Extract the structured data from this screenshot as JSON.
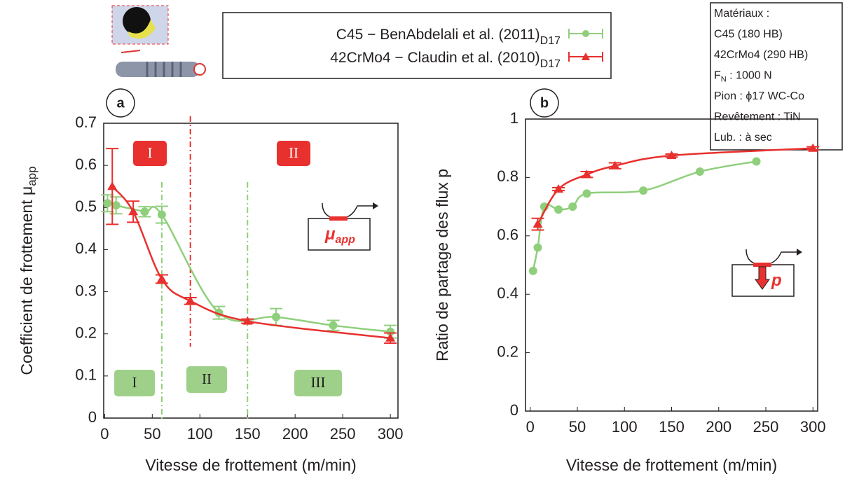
{
  "legend": {
    "entries": [
      {
        "name": "C45 − BenAbdelali et al. (2011)",
        "sub": "D17"
      },
      {
        "name": "42CrMo4 − Claudin et al. (2010)",
        "sub": "D17"
      }
    ]
  },
  "info_box": {
    "lines": [
      {
        "text": "Matériaux :"
      },
      {
        "text": "C45 (180 HB)"
      },
      {
        "text": "42CrMo4 (290 HB)"
      },
      {
        "text": "F",
        "sub": "N",
        "rest": " : 1000 N"
      },
      {
        "text": "Pion : ϕ17 WC-Co"
      },
      {
        "text": "Revêtement : TiN"
      },
      {
        "text": "Lub. : à sec"
      }
    ]
  },
  "chart_data": [
    {
      "type": "scatter",
      "panel": "a",
      "xlabel": "Vitesse de frottement (m/min)",
      "ylabel": "Coefficient de frottement μ",
      "ylabel_sub": "app",
      "xlim": [
        -1,
        308
      ],
      "ylim": [
        0,
        0.7
      ],
      "xticks": [
        0,
        50,
        100,
        150,
        200,
        250,
        300
      ],
      "yticks": [
        0,
        0.1,
        0.2,
        0.3,
        0.4,
        0.5,
        0.6,
        0.7
      ],
      "series": [
        {
          "name": "C45 − BenAbdelali et al. (2011)",
          "color": "#8fcf7c",
          "marker": "circle",
          "x": [
            3,
            12,
            42,
            60,
            120,
            180,
            240,
            300
          ],
          "values": [
            0.51,
            0.505,
            0.49,
            0.483,
            0.25,
            0.24,
            0.22,
            0.205
          ],
          "errors": [
            0.02,
            0.02,
            0.012,
            0.02,
            0.015,
            0.02,
            0.012,
            0.015
          ]
        },
        {
          "name": "42CrMo4 − Claudin et al. (2010)",
          "color": "#e8302e",
          "marker": "triangle",
          "x": [
            8,
            30,
            60,
            90,
            150,
            300
          ],
          "values": [
            0.55,
            0.49,
            0.33,
            0.278,
            0.23,
            0.19
          ],
          "errors": [
            0.09,
            0.025,
            0.01,
            0.008,
            0.005,
            0.012
          ]
        }
      ],
      "vlines": [
        {
          "x": 60,
          "color": "#8fcf7c"
        },
        {
          "x": 90,
          "color": "#e8302e"
        },
        {
          "x": 150,
          "color": "#8fcf7c"
        }
      ],
      "regions_red": [
        "I",
        "II"
      ],
      "regions_green": [
        "I",
        "II",
        "III"
      ],
      "icon_label": "μ",
      "icon_sub": "app"
    },
    {
      "type": "scatter",
      "panel": "b",
      "xlabel": "Vitesse de frottement (m/min)",
      "ylabel": "Ratio de partage des flux p",
      "xlim": [
        -5,
        305
      ],
      "ylim": [
        0,
        1
      ],
      "xticks": [
        0,
        50,
        100,
        150,
        200,
        250,
        300
      ],
      "yticks": [
        0,
        0.2,
        0.4,
        0.6,
        0.8,
        1
      ],
      "series": [
        {
          "name": "C45 − BenAbdelali et al. (2011)",
          "color": "#8fcf7c",
          "marker": "circle",
          "x": [
            3,
            8,
            15,
            30,
            45,
            60,
            120,
            180,
            240
          ],
          "values": [
            0.48,
            0.56,
            0.7,
            0.69,
            0.7,
            0.745,
            0.755,
            0.82,
            0.855
          ]
        },
        {
          "name": "42CrMo4 − Claudin et al. (2010)",
          "color": "#e8302e",
          "marker": "triangle",
          "x": [
            8,
            30,
            60,
            90,
            150,
            300
          ],
          "values": [
            0.64,
            0.76,
            0.81,
            0.84,
            0.875,
            0.9
          ],
          "errors": [
            0.02,
            0.005,
            0.01,
            0.01,
            0.005,
            0.005
          ]
        }
      ],
      "icon_label": "p"
    }
  ]
}
